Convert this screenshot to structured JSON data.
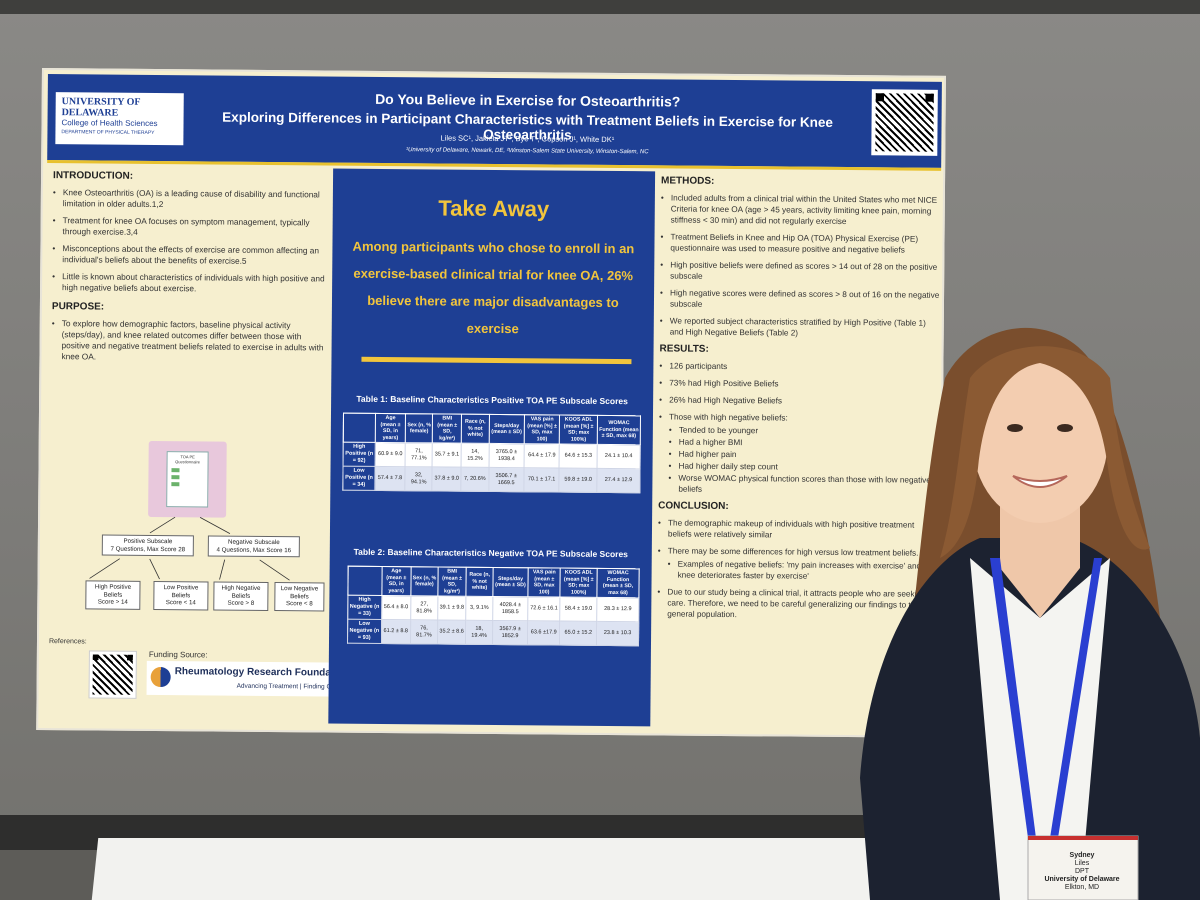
{
  "poster": {
    "logo": {
      "line1": "UNIVERSITY OF DELAWARE",
      "line2": "College of Health Sciences",
      "line3": "DEPARTMENT OF PHYSICAL THERAPY"
    },
    "title1": "Do You Believe in Exercise for Osteoarthritis?",
    "title2": "Exploring Differences in Participant Characteristics with Treatment Beliefs in Exercise for Knee Osteoarthritis",
    "authors": "Liles SC¹,  Jakiela JT¹,  Bye T¹,  Copson J¹,  White DK¹",
    "affiliations": "¹University of Delaware, Newark, DE, ²Winston-Salem State University, Winston-Salem, NC",
    "introduction": {
      "heading": "INTRODUCTION:",
      "items": [
        "Knee Osteoarthritis (OA) is a leading cause of disability and functional limitation in older adults.1,2",
        "Treatment for knee OA focuses on symptom management, typically through exercise.3,4",
        "Misconceptions about the effects of exercise are common affecting an individual's beliefs about the benefits of exercise.5",
        "Little is known about characteristics of individuals with high positive and high negative beliefs about exercise."
      ]
    },
    "purpose": {
      "heading": "PURPOSE:",
      "items": [
        "To explore how demographic factors, baseline physical activity (steps/day), and knee related outcomes differ between those with positive and negative treatment beliefs related to exercise in adults with knee OA."
      ]
    },
    "flow": {
      "questionnaire": "TOA PE Questionnaire",
      "positive": "Positive Subscale\n7 Questions, Max Score 28",
      "negative": "Negative Subscale\n4 Questions, Max Score 16",
      "hp": "High Positive\nBeliefs\nScore > 14",
      "lp": "Low Positive\nBeliefs\nScore < 14",
      "hn": "High Negative\nBeliefs\nScore > 8",
      "ln": "Low Negative\nBeliefs\nScore < 8"
    },
    "references": "References:",
    "funding": {
      "label": "Funding Source:",
      "org": "Rheumatology Research Foundation",
      "tagline": "Advancing Treatment | Finding Cures"
    },
    "takeaway": {
      "heading": "Take Away",
      "message": "Among participants who chose to enroll in an exercise-based clinical trial for knee OA, 26% believe there are major disadvantages to exercise"
    },
    "table1": {
      "caption": "Table 1: Baseline Characteristics Positive TOA PE Subscale Scores",
      "headers": [
        "",
        "Age (mean ± SD, in years)",
        "Sex (n, % female)",
        "BMI (mean ± SD, kg/m²)",
        "Race (n, % not white)",
        "Steps/day (mean ± SD)",
        "VAS pain (mean [%] ± SD, max 100)",
        "KOOS ADL (mean [%] ± SD; max 100%)",
        "WOMAC Function (mean ± SD, max 68)"
      ],
      "rows": [
        [
          "High Positive (n = 92)",
          "60.9 ± 9.0",
          "71, 77.1%",
          "35.7 ± 9.1",
          "14, 15.2%",
          "3765.0 ± 1938.4",
          "64.4 ± 17.9",
          "64.6 ± 15.3",
          "24.1 ± 10.4"
        ],
        [
          "Low Positive (n = 34)",
          "57.4 ± 7.8",
          "32, 94.1%",
          "37.8 ± 9.0",
          "7, 20.6%",
          "3506.7 ± 1669.5",
          "70.1 ± 17.1",
          "59.8 ± 19.0",
          "27.4 ± 12.9"
        ]
      ]
    },
    "table2": {
      "caption": "Table 2: Baseline Characteristics Negative TOA PE Subscale Scores",
      "headers": [
        "",
        "Age (mean ± SD, in years)",
        "Sex (n, % female)",
        "BMI (mean ± SD, kg/m²)",
        "Race (n, % not white)",
        "Steps/day (mean ± SD)",
        "VAS pain (mean ± SD, max 100)",
        "KOOS ADL (mean [%] ± SD; max 100%)",
        "WOMAC Function (mean ± SD, max 68)"
      ],
      "rows": [
        [
          "High Negative (n = 33)",
          "56.4 ± 8.0",
          "27, 81.8%",
          "39.1 ± 9.8",
          "3, 9.1%",
          "4028.4 ± 1858.5",
          "72.6 ± 16.1",
          "58.4 ± 19.0",
          "28.3 ± 12.9"
        ],
        [
          "Low Negative (n = 93)",
          "61.2 ± 8.8",
          "76, 81.7%",
          "35.2 ± 8.6",
          "18, 19.4%",
          "3567.9 ± 1852.9",
          "63.6 ±17.9",
          "65.0 ± 15.2",
          "23.8 ± 10.3"
        ]
      ]
    },
    "methods": {
      "heading": "METHODS:",
      "items": [
        "Included adults from a clinical trial within the United States who met NICE Criteria for knee OA (age > 45 years, activity limiting knee pain, morning stiffness < 30 min) and did not regularly exercise",
        "Treatment Beliefs in Knee and Hip OA (TOA) Physical Exercise (PE) questionnaire was used to measure positive and negative beliefs",
        "High positive beliefs were defined as scores > 14 out of 28 on the positive subscale",
        "High negative scores were defined as scores > 8 out of 16 on the negative subscale",
        "We reported subject characteristics stratified by High Positive (Table 1) and High Negative Beliefs (Table 2)"
      ]
    },
    "results": {
      "heading": "RESULTS:",
      "items": [
        "126 participants",
        "73% had High Positive Beliefs",
        "26% had High Negative Beliefs",
        "Those with high negative beliefs:"
      ],
      "subitems": [
        "Tended to be younger",
        "Had a higher BMI",
        "Had higher pain",
        "Had higher daily step count",
        "Worse WOMAC physical function scores than those with low negative beliefs"
      ]
    },
    "conclusion": {
      "heading": "CONCLUSION:",
      "items": [
        "The demographic makeup of individuals with high positive treatment beliefs were relatively similar",
        "There may be some differences for high versus low treatment beliefs."
      ],
      "subitems": [
        "Examples of negative beliefs: 'my pain increases with exercise' and 'my knee deteriorates faster by exercise'"
      ],
      "items2": [
        "Due to our study being a clinical trial, it attracts people who are seeking care. Therefore, we need to be careful generalizing our findings to the general population."
      ]
    }
  },
  "badge": {
    "first": "Sydney",
    "last": "Liles",
    "title": "DPT",
    "org": "University of Delaware",
    "city": "Elkton, MD"
  }
}
